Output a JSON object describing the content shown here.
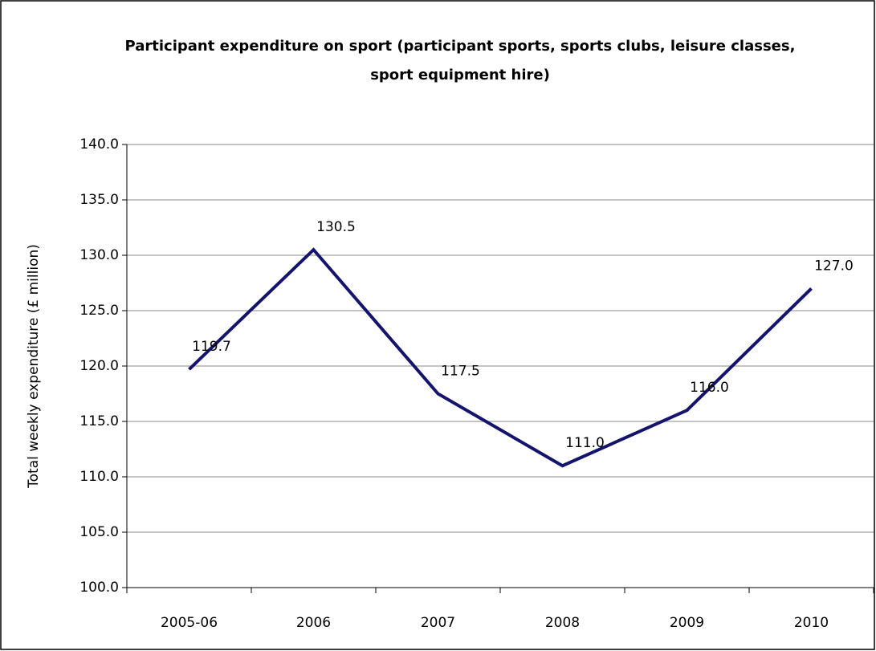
{
  "chart_data": {
    "type": "line",
    "title": "Participant expenditure on sport (participant sports, sports clubs, leisure classes, sport equipment hire)",
    "y_label": "Total weekly expenditure (£ million)",
    "categories": [
      "2005-06",
      "2006",
      "2007",
      "2008",
      "2009",
      "2010"
    ],
    "series": [
      {
        "color": "#14146e",
        "values": [
          119.7,
          130.5,
          117.5,
          111.0,
          116.0,
          127.0
        ],
        "value_labels": [
          "119.7",
          "130.5",
          "117.5",
          "111.0",
          "116.0",
          "127.0"
        ]
      }
    ],
    "ylim": [
      100,
      140
    ],
    "yticks": [
      {
        "value": 100,
        "label": "100.0"
      },
      {
        "value": 105,
        "label": "105.0"
      },
      {
        "value": 110,
        "label": "110.0"
      },
      {
        "value": 115,
        "label": "115.0"
      },
      {
        "value": 120,
        "label": "120.0"
      },
      {
        "value": 125,
        "label": "125.0"
      },
      {
        "value": 130,
        "label": "130.0"
      },
      {
        "value": 135,
        "label": "135.0"
      },
      {
        "value": 140,
        "label": "140.0"
      }
    ],
    "grid": true
  }
}
